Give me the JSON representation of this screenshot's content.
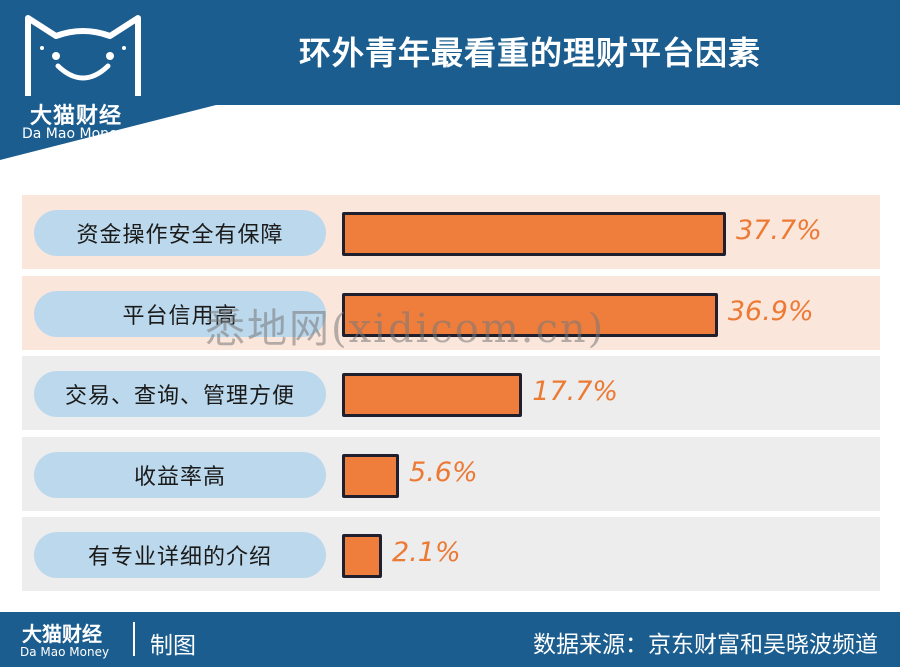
{
  "header": {
    "logo_cn": "大猫财经",
    "logo_en": "Da Mao Money",
    "title": "环外青年最看重的理财平台因素"
  },
  "colors": {
    "header_bg": "#1b5d8f",
    "bar_fill": "#ef7d3c",
    "bar_border": "#1f1f2e",
    "value_text": "#ec7a34",
    "pill_bg": "#bcd8ec",
    "row_highlight": "#fbe6dc",
    "row_normal": "#ededee"
  },
  "chart_data": {
    "type": "bar",
    "orientation": "horizontal",
    "categories": [
      "资金操作安全有保障",
      "平台信用高",
      "交易、查询、管理方便",
      "收益率高",
      "有专业详细的介绍"
    ],
    "values": [
      37.7,
      36.9,
      17.7,
      5.6,
      2.1
    ],
    "value_labels": [
      "37.7%",
      "36.9%",
      "17.7%",
      "5.6%",
      "2.1%"
    ],
    "unit": "%",
    "highlighted_rows": [
      0,
      1
    ],
    "title": "环外青年最看重的理财平台因素"
  },
  "watermark": "悉地网(xidicom.cn)",
  "footer": {
    "logo_cn": "大猫财经",
    "logo_en": "Da Mao Money",
    "made_by": "制图",
    "source": "数据来源：京东财富和吴晓波频道"
  }
}
